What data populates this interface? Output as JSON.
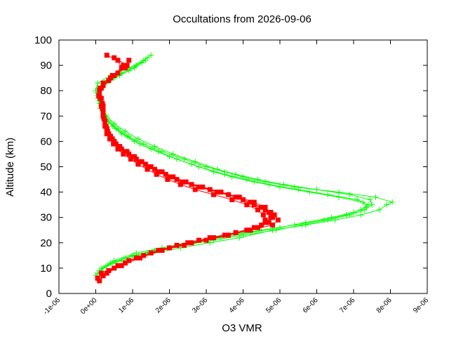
{
  "chart_data": {
    "type": "line",
    "title": "Occultations from 2026-09-06",
    "xlabel": "O3 VMR",
    "ylabel": "Altitude (km)",
    "xlim": [
      -1e-06,
      9e-06
    ],
    "ylim": [
      0,
      100
    ],
    "x_ticks": [
      -1e-06,
      0,
      1e-06,
      2e-06,
      3e-06,
      4e-06,
      5e-06,
      6e-06,
      7e-06,
      8e-06,
      9e-06
    ],
    "x_tick_labels": [
      "-1e-06",
      "0e+00",
      "1e-06",
      "2e-06",
      "3e-06",
      "4e-06",
      "5e-06",
      "6e-06",
      "7e-06",
      "8e-06",
      "9e-06"
    ],
    "y_ticks": [
      0,
      10,
      20,
      30,
      40,
      50,
      60,
      70,
      80,
      90,
      100
    ],
    "y_tick_labels": [
      "0",
      "10",
      "20",
      "30",
      "40",
      "50",
      "60",
      "70",
      "80",
      "90",
      "100"
    ],
    "grid": false,
    "legend": "none",
    "series": [
      {
        "color": "#00ff00",
        "marker": "plus",
        "profiles": [
          {
            "altitude": [
              7,
              10,
              13,
              15,
              18,
              20,
              22,
              25,
              27,
              29,
              31,
              33,
              35,
              36,
              38,
              40,
              42,
              44,
              46,
              48,
              50,
              53,
              56,
              59,
              62,
              65,
              68,
              72,
              76,
              80,
              83,
              86,
              89,
              92,
              94
            ],
            "values": [
              0.0,
              2e-07,
              7e-07,
              1.3e-06,
              2.3e-06,
              3.1e-06,
              3.9e-06,
              4.8e-06,
              5.7e-06,
              6.5e-06,
              7.2e-06,
              7.7e-06,
              7.9e-06,
              8.05e-06,
              7.6e-06,
              6.6e-06,
              5.4e-06,
              4.6e-06,
              4e-06,
              3.5e-06,
              3e-06,
              2.4e-06,
              1.8e-06,
              1.3e-06,
              9e-07,
              6e-07,
              3.5e-07,
              2e-07,
              1e-07,
              0.0,
              5e-08,
              4e-07,
              9e-07,
              1.3e-06,
              1.5e-06
            ]
          },
          {
            "altitude": [
              8,
              11,
              14,
              16,
              19,
              21,
              23,
              25,
              27,
              29,
              31,
              33,
              35,
              37,
              39,
              41,
              43,
              45,
              47,
              49,
              52,
              55,
              58,
              61,
              64,
              67,
              70,
              74,
              78,
              81,
              84,
              87,
              90,
              93
            ],
            "values": [
              5e-08,
              3e-07,
              8e-07,
              1.4e-06,
              2.4e-06,
              3.2e-06,
              4e-06,
              4.9e-06,
              5.6e-06,
              6.3e-06,
              6.9e-06,
              7.3e-06,
              7.5e-06,
              7.45e-06,
              6.9e-06,
              6e-06,
              5.1e-06,
              4.4e-06,
              3.8e-06,
              3.3e-06,
              2.7e-06,
              2.1e-06,
              1.6e-06,
              1.15e-06,
              8e-07,
              5e-07,
              3e-07,
              1.5e-07,
              5e-08,
              5e-08,
              3e-07,
              7e-07,
              1.1e-06,
              1.4e-06
            ]
          },
          {
            "altitude": [
              9,
              12,
              15,
              17,
              20,
              22,
              24,
              26,
              28,
              30,
              32,
              34,
              36,
              38,
              40,
              42,
              44,
              46,
              48,
              51,
              54,
              57,
              60,
              63,
              66,
              69,
              73,
              77,
              80,
              83,
              86,
              89,
              92
            ],
            "values": [
              1e-07,
              4e-07,
              1e-06,
              1.6e-06,
              2.6e-06,
              3.4e-06,
              4.2e-06,
              5e-06,
              5.7e-06,
              6.4e-06,
              7e-06,
              7.35e-06,
              7.25e-06,
              6.6e-06,
              5.8e-06,
              5e-06,
              4.3e-06,
              3.7e-06,
              3.2e-06,
              2.6e-06,
              2e-06,
              1.5e-06,
              1.05e-06,
              7e-07,
              4.5e-07,
              2.5e-07,
              1.2e-07,
              5e-08,
              1e-07,
              3e-07,
              6.5e-07,
              1.05e-06,
              1.35e-06
            ]
          },
          {
            "altitude": [
              10,
              13,
              16,
              18,
              21,
              23,
              25,
              27,
              29,
              31,
              33,
              35,
              37,
              39,
              41,
              43,
              45,
              47,
              50,
              53,
              56,
              59,
              62,
              65,
              68,
              71,
              75,
              79,
              82,
              85,
              88,
              91
            ],
            "values": [
              1.5e-07,
              5e-07,
              1.1e-06,
              1.8e-06,
              2.8e-06,
              3.6e-06,
              4.5e-06,
              5.4e-06,
              6.2e-06,
              6.8e-06,
              7.2e-06,
              7.4e-06,
              7.1e-06,
              6.3e-06,
              5.5e-06,
              4.7e-06,
              4.1e-06,
              3.5e-06,
              2.8e-06,
              2.2e-06,
              1.7e-06,
              1.2e-06,
              8.5e-07,
              5.5e-07,
              3.5e-07,
              2e-07,
              1e-07,
              5e-08,
              2e-07,
              5e-07,
              9e-07,
              1.25e-06
            ]
          }
        ]
      },
      {
        "color": "#ff0000",
        "marker": "filled-square",
        "profiles": [
          {
            "altitude": [
              5,
              8,
              11,
              14,
              17,
              19,
              21,
              23,
              25,
              27,
              29,
              31,
              33,
              35,
              37,
              39,
              41,
              43,
              45,
              47,
              49,
              51,
              53,
              55,
              57,
              59,
              61,
              63,
              65,
              68,
              71,
              74,
              77,
              80,
              83,
              86,
              89,
              92,
              94
            ],
            "values": [
              1e-07,
              3e-07,
              7e-07,
              1.2e-06,
              1.8e-06,
              2.4e-06,
              3e-06,
              3.6e-06,
              4.2e-06,
              4.8e-06,
              4.95e-06,
              4.85e-06,
              4.6e-06,
              4.3e-06,
              4e-06,
              3.6e-06,
              3.1e-06,
              2.6e-06,
              2.2e-06,
              1.9e-06,
              1.6e-06,
              1.35e-06,
              1.1e-06,
              9e-07,
              7e-07,
              5.5e-07,
              4.5e-07,
              3.5e-07,
              3e-07,
              2.5e-07,
              2e-07,
              2e-07,
              1.5e-07,
              1e-07,
              2e-07,
              4.5e-07,
              7e-07,
              6e-07,
              3e-07
            ]
          },
          {
            "altitude": [
              6,
              9,
              12,
              15,
              18,
              20,
              22,
              24,
              26,
              28,
              30,
              32,
              34,
              36,
              38,
              40,
              42,
              44,
              46,
              48,
              50,
              52,
              54,
              56,
              58,
              60,
              62,
              64,
              66,
              69,
              72,
              75,
              78,
              81,
              84,
              87,
              90,
              93
            ],
            "values": [
              5e-08,
              3.5e-07,
              8e-07,
              1.3e-06,
              2e-06,
              2.6e-06,
              3.2e-06,
              3.8e-06,
              4.3e-06,
              4.6e-06,
              4.75e-06,
              4.7e-06,
              4.5e-06,
              4.2e-06,
              3.8e-06,
              3.3e-06,
              2.8e-06,
              2.35e-06,
              2e-06,
              1.7e-06,
              1.45e-06,
              1.2e-06,
              1e-06,
              8e-07,
              6e-07,
              5e-07,
              4e-07,
              3.2e-07,
              2.8e-07,
              2.2e-07,
              2e-07,
              1.8e-07,
              1e-07,
              1.5e-07,
              3.5e-07,
              6e-07,
              8.5e-07,
              5e-07
            ]
          },
          {
            "altitude": [
              7,
              10,
              13,
              16,
              19,
              21,
              23,
              25,
              27,
              29,
              31,
              33,
              35,
              37,
              39,
              41,
              43,
              45,
              47,
              49,
              51,
              53,
              55,
              57,
              59,
              61,
              63,
              66,
              70,
              74,
              78,
              82,
              86,
              90
            ],
            "values": [
              2e-07,
              5e-07,
              9e-07,
              1.5e-06,
              2.2e-06,
              2.8e-06,
              3.5e-06,
              4.1e-06,
              4.5e-06,
              4.6e-06,
              4.55e-06,
              4.4e-06,
              4.1e-06,
              3.7e-06,
              3.2e-06,
              2.7e-06,
              2.3e-06,
              1.95e-06,
              1.65e-06,
              1.4e-06,
              1.15e-06,
              9.5e-07,
              7.5e-07,
              6e-07,
              4.8e-07,
              3.8e-07,
              3e-07,
              2.5e-07,
              2e-07,
              1.5e-07,
              8e-08,
              2e-07,
              5e-07,
              7.5e-07
            ]
          },
          {
            "altitude": [
              8,
              11,
              14,
              17,
              20,
              22,
              24,
              26,
              28,
              30,
              32,
              34,
              36,
              38,
              40,
              42,
              44,
              46,
              48,
              50,
              52,
              54,
              56,
              58,
              60,
              62,
              65,
              69,
              73,
              77,
              81,
              85,
              89,
              92
            ],
            "values": [
              1.5e-07,
              6e-07,
              1.1e-06,
              1.7e-06,
              2.5e-06,
              3.1e-06,
              3.8e-06,
              4.4e-06,
              4.7e-06,
              4.8e-06,
              4.75e-06,
              4.6e-06,
              4.3e-06,
              3.9e-06,
              3.4e-06,
              2.9e-06,
              2.45e-06,
              2.1e-06,
              1.8e-06,
              1.5e-06,
              1.25e-06,
              1.05e-06,
              8.5e-07,
              6.5e-07,
              5e-07,
              4e-07,
              3e-07,
              2.2e-07,
              1.8e-07,
              1.2e-07,
              1.2e-07,
              4e-07,
              8e-07,
              9e-07
            ]
          }
        ]
      }
    ]
  }
}
